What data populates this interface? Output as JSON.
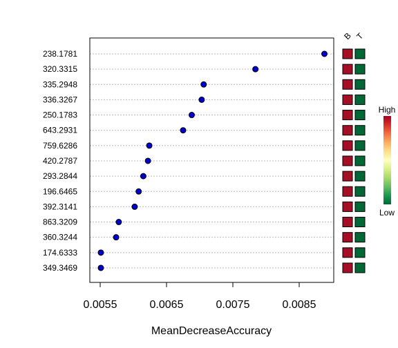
{
  "chart_data": {
    "type": "scatter",
    "xlabel": "MeanDecreaseAccuracy",
    "xlim": [
      0.005,
      0.009
    ],
    "xticks": [
      "0.0055",
      "0.0065",
      "0.0075",
      "0.0085"
    ],
    "xtick_values": [
      0.0055,
      0.0065,
      0.0075,
      0.0085
    ],
    "grid": "horizontal dotted",
    "categories": [
      "238.1781",
      "320.3315",
      "335.2948",
      "336.3267",
      "250.1783",
      "643.2931",
      "759.6286",
      "420.2787",
      "293.2844",
      "196.6465",
      "392.3141",
      "863.3209",
      "360.3244",
      "174.6333",
      "349.3469"
    ],
    "values": [
      0.00888,
      0.00784,
      0.00706,
      0.00703,
      0.00688,
      0.00675,
      0.00624,
      0.00622,
      0.00615,
      0.00608,
      0.00602,
      0.00578,
      0.00574,
      0.00551,
      0.00551
    ],
    "marker_color": "#0000cc",
    "heatmap": {
      "columns": [
        "B",
        "T"
      ],
      "column_colors": [
        "#a50f26",
        "#006837"
      ]
    },
    "legend": {
      "high_label": "High",
      "low_label": "Low",
      "gradient": [
        "#a50026",
        "#d73027",
        "#f46d43",
        "#fdae61",
        "#fee08b",
        "#ffffbf",
        "#d9ef8b",
        "#a6d96a",
        "#66bd63",
        "#1a9850",
        "#006837"
      ]
    }
  }
}
